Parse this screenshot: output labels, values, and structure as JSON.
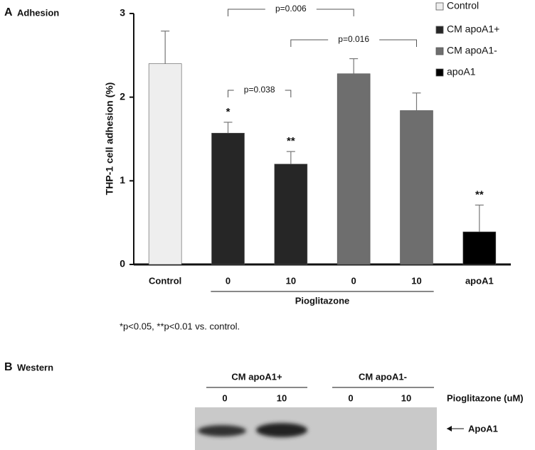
{
  "panel_a": {
    "label": "A",
    "title": "Adhesion"
  },
  "chart_data": {
    "type": "bar",
    "ylabel": "THP-1 cell adhesion (%)",
    "categories": [
      "Control",
      "0",
      "10",
      "0",
      "10",
      "apoA1"
    ],
    "ylim": [
      0,
      3
    ],
    "yticks": [
      0,
      1,
      2,
      3
    ],
    "series": [
      {
        "name": "Control",
        "color": "#eeeeee",
        "values": [
          2.4,
          null,
          null,
          null,
          null,
          null
        ],
        "errors": [
          0.39,
          null,
          null,
          null,
          null,
          null
        ],
        "significance": [
          null,
          null,
          null,
          null,
          null,
          null
        ]
      },
      {
        "name": "CM apoA1+",
        "color": "#262626",
        "values": [
          null,
          1.57,
          1.2,
          null,
          null,
          null
        ],
        "errors": [
          null,
          0.13,
          0.15,
          null,
          null,
          null
        ],
        "significance": [
          null,
          "*",
          "**",
          null,
          null,
          null
        ]
      },
      {
        "name": "CM apoA1-",
        "color": "#6e6e6e",
        "values": [
          null,
          null,
          null,
          2.28,
          1.84,
          null
        ],
        "errors": [
          null,
          null,
          null,
          0.18,
          0.21,
          null
        ],
        "significance": [
          null,
          null,
          null,
          null,
          null,
          null
        ]
      },
      {
        "name": "apoA1",
        "color": "#000000",
        "values": [
          null,
          null,
          null,
          null,
          null,
          0.39
        ],
        "errors": [
          null,
          null,
          null,
          null,
          null,
          0.32
        ],
        "significance": [
          null,
          null,
          null,
          null,
          null,
          "**"
        ]
      }
    ],
    "comparisons": [
      {
        "label": "p=0.006",
        "from": 1,
        "to": 3
      },
      {
        "label": "p=0.016",
        "from": 2,
        "to": 4
      },
      {
        "label": "p=0.038",
        "from": 1,
        "to": 2
      }
    ],
    "groups": [
      {
        "label": "Pioglitazone",
        "from": 1,
        "to": 4
      }
    ]
  },
  "footnote": "*p<0.05, **p<0.01 vs. control.",
  "western": {
    "label": "B",
    "title": "Western",
    "groups": [
      "CM apoA1+",
      "CM apoA1-"
    ],
    "lanes": [
      "0",
      "10",
      "0",
      "10"
    ],
    "treatment": "Pioglitazone (uM)",
    "band": "ApoA1"
  }
}
